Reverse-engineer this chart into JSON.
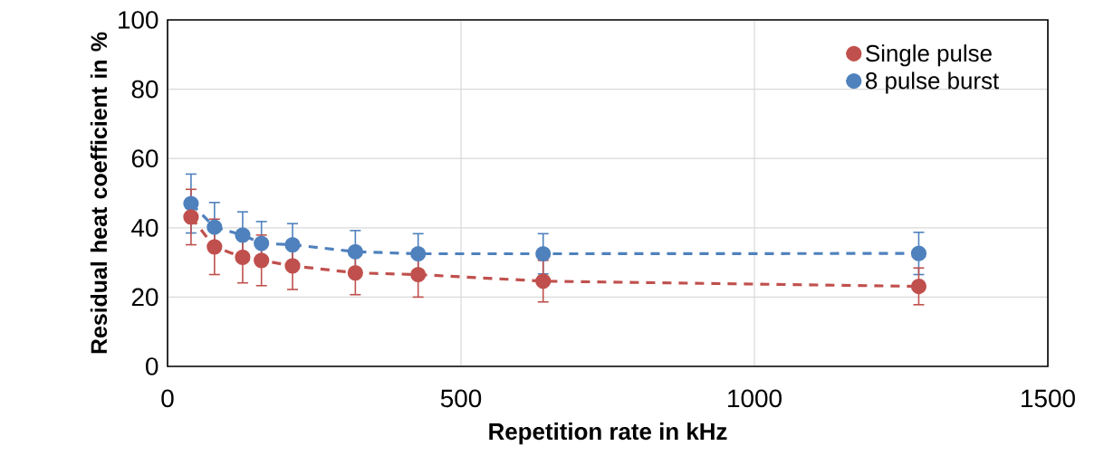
{
  "chart_data": {
    "type": "line",
    "xlabel": "Repetition rate in kHz",
    "ylabel": "Residual heat coefficient in %",
    "xlim": [
      0,
      1500
    ],
    "xticks": [
      0,
      500,
      1000,
      1500
    ],
    "ylim": [
      0,
      100
    ],
    "yticks": [
      0,
      20,
      40,
      60,
      80,
      100
    ],
    "grid": true,
    "legend": "top right",
    "marker": "circle",
    "line_style": "dashed",
    "series": [
      {
        "name": "Single pulse",
        "color": "#c0504d",
        "x": [
          40,
          80,
          128,
          160,
          213,
          320,
          427,
          640,
          1280
        ],
        "values": [
          43.1,
          34.5,
          31.5,
          30.6,
          29.0,
          27.0,
          26.5,
          24.6,
          23.1
        ],
        "errors": [
          8.0,
          8.0,
          7.4,
          7.3,
          6.8,
          6.3,
          6.5,
          6.0,
          5.3
        ]
      },
      {
        "name": "8 pulse burst",
        "color": "#4f81bd",
        "x": [
          40,
          80,
          128,
          160,
          213,
          320,
          427,
          640,
          1280
        ],
        "values": [
          47.0,
          40.2,
          37.9,
          35.5,
          35.1,
          33.1,
          32.5,
          32.5,
          32.6
        ],
        "errors": [
          8.5,
          7.1,
          6.7,
          6.3,
          6.1,
          6.1,
          5.8,
          5.8,
          6.1
        ]
      }
    ]
  }
}
